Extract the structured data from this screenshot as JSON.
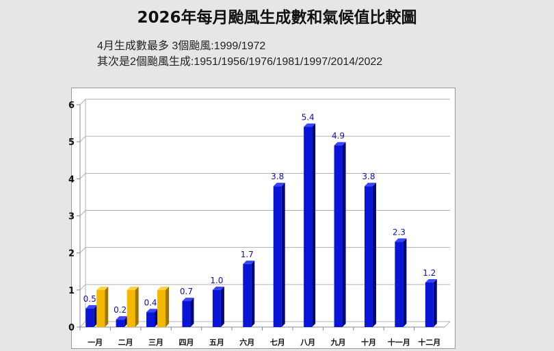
{
  "title": "2026年每月颱風生成數和氣候值比較圖",
  "subtitle1": "4月生成數最多 3個颱風:1999/1972",
  "subtitle2": "其次是2個颱風生成:1951/1956/1976/1981/1997/2014/2022",
  "chart_data": {
    "type": "bar",
    "title": "2026年每月颱風生成數和氣候值比較圖",
    "categories": [
      "一月",
      "二月",
      "三月",
      "四月",
      "五月",
      "六月",
      "七月",
      "八月",
      "九月",
      "十月",
      "十一月",
      "十二月"
    ],
    "series": [
      {
        "values": [
          0.5,
          0.2,
          0.4,
          0.7,
          1.0,
          1.7,
          3.8,
          5.4,
          4.9,
          3.8,
          2.3,
          1.2
        ],
        "color": "#0a14d6",
        "labels": [
          "0.5",
          "0.2",
          "0.4",
          "0.7",
          "1.0",
          "1.7",
          "3.8",
          "5.4",
          "4.9",
          "3.8",
          "2.3",
          "1.2"
        ]
      },
      {
        "values": [
          1,
          1,
          1,
          null,
          null,
          null,
          null,
          null,
          null,
          null,
          null,
          null
        ],
        "color": "#f5b800"
      }
    ],
    "ylim": [
      0,
      6
    ],
    "yticks": [
      "0",
      "1",
      "2",
      "3",
      "4",
      "5",
      "6"
    ],
    "grid": true,
    "style": "3d"
  }
}
